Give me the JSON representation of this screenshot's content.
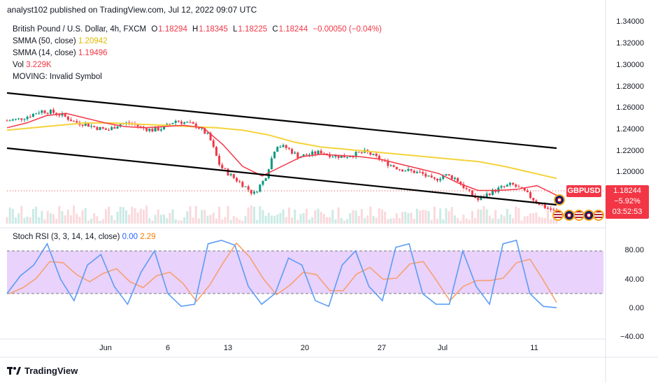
{
  "publisher": "analyst102 published on TradingView.com, Jul 12, 2022 09:07 UTC",
  "legend": {
    "symbol": "British Pound / U.S. Dollar, 4h, FXCM",
    "open_key": "O",
    "open": "1.18294",
    "high_key": "H",
    "high": "1.18345",
    "low_key": "L",
    "low": "1.18225",
    "close_key": "C",
    "close": "1.18244",
    "change": "−0.00050 (−0.04%)",
    "smma50_label": "SMMA (50, close)",
    "smma50_value": "1.20942",
    "smma14_label": "SMMA (14, close)",
    "smma14_value": "1.19496",
    "vol_label": "Vol",
    "vol_value": "3.229K",
    "moving_label": "MOVING: Invalid Symbol"
  },
  "stoch_legend": {
    "label": "Stoch RSI (3, 3, 14, 14, close)",
    "k_value": "0.00",
    "d_value": "2.29"
  },
  "price_axis": [
    "1.34000",
    "1.32000",
    "1.30000",
    "1.28000",
    "1.26000",
    "1.24000",
    "1.22000",
    "1.20000"
  ],
  "stoch_axis": [
    "80.00",
    "40.00",
    "0.00",
    "−40.00"
  ],
  "time_axis": [
    "Jun",
    "6",
    "13",
    "20",
    "27",
    "Jul",
    "11"
  ],
  "badges": {
    "symbol": "GBPUSD",
    "price": "1.18244",
    "change_pct": "−5.92%",
    "countdown": "03:52:53"
  },
  "brand": "TradingView",
  "colors": {
    "down": "#f23645",
    "up": "#089981",
    "smma50": "#f5d33a",
    "smma14": "#f23645",
    "stoch_k": "#5b9cf6",
    "stoch_d": "#f7a072",
    "stoch_band": "#e1c5f7",
    "trendline": "#000000"
  },
  "chart_data": {
    "type": "candlestick",
    "price_range": [
      1.18,
      1.34
    ],
    "stoch_range": [
      -40,
      100
    ],
    "stoch_levels": [
      80,
      20
    ],
    "price_path": [
      1.258,
      1.259,
      1.262,
      1.266,
      1.265,
      1.262,
      1.257,
      1.255,
      1.252,
      1.25,
      1.255,
      1.256,
      1.252,
      1.25,
      1.252,
      1.258,
      1.256,
      1.253,
      1.245,
      1.22,
      1.212,
      1.205,
      1.197,
      1.21,
      1.238,
      1.235,
      1.228,
      1.23,
      1.232,
      1.229,
      1.228,
      1.23,
      1.232,
      1.227,
      1.222,
      1.218,
      1.216,
      1.214,
      1.208,
      1.213,
      1.21,
      1.2,
      1.192,
      1.198,
      1.202,
      1.205,
      1.2,
      1.192,
      1.186,
      1.182
    ],
    "smma50_path": [
      1.25,
      1.252,
      1.254,
      1.256,
      1.256,
      1.255,
      1.254,
      1.253,
      1.252,
      1.25,
      1.246,
      1.24,
      1.236,
      1.234,
      1.232,
      1.23,
      1.228,
      1.226,
      1.224,
      1.22,
      1.215,
      1.21
    ],
    "smma14_path": [
      1.252,
      1.256,
      1.262,
      1.264,
      1.26,
      1.256,
      1.253,
      1.252,
      1.253,
      1.254,
      1.252,
      1.238,
      1.22,
      1.212,
      1.22,
      1.228,
      1.23,
      1.229,
      1.228,
      1.226,
      1.222,
      1.218,
      1.214,
      1.206,
      1.2,
      1.2,
      1.201,
      1.204,
      1.196
    ],
    "stoch_k": [
      20,
      45,
      60,
      90,
      40,
      10,
      60,
      75,
      30,
      5,
      50,
      80,
      20,
      2,
      5,
      90,
      95,
      88,
      30,
      5,
      20,
      70,
      60,
      10,
      2,
      60,
      80,
      30,
      10,
      85,
      90,
      20,
      5,
      5,
      80,
      30,
      5,
      90,
      95,
      20,
      2,
      0
    ]
  }
}
